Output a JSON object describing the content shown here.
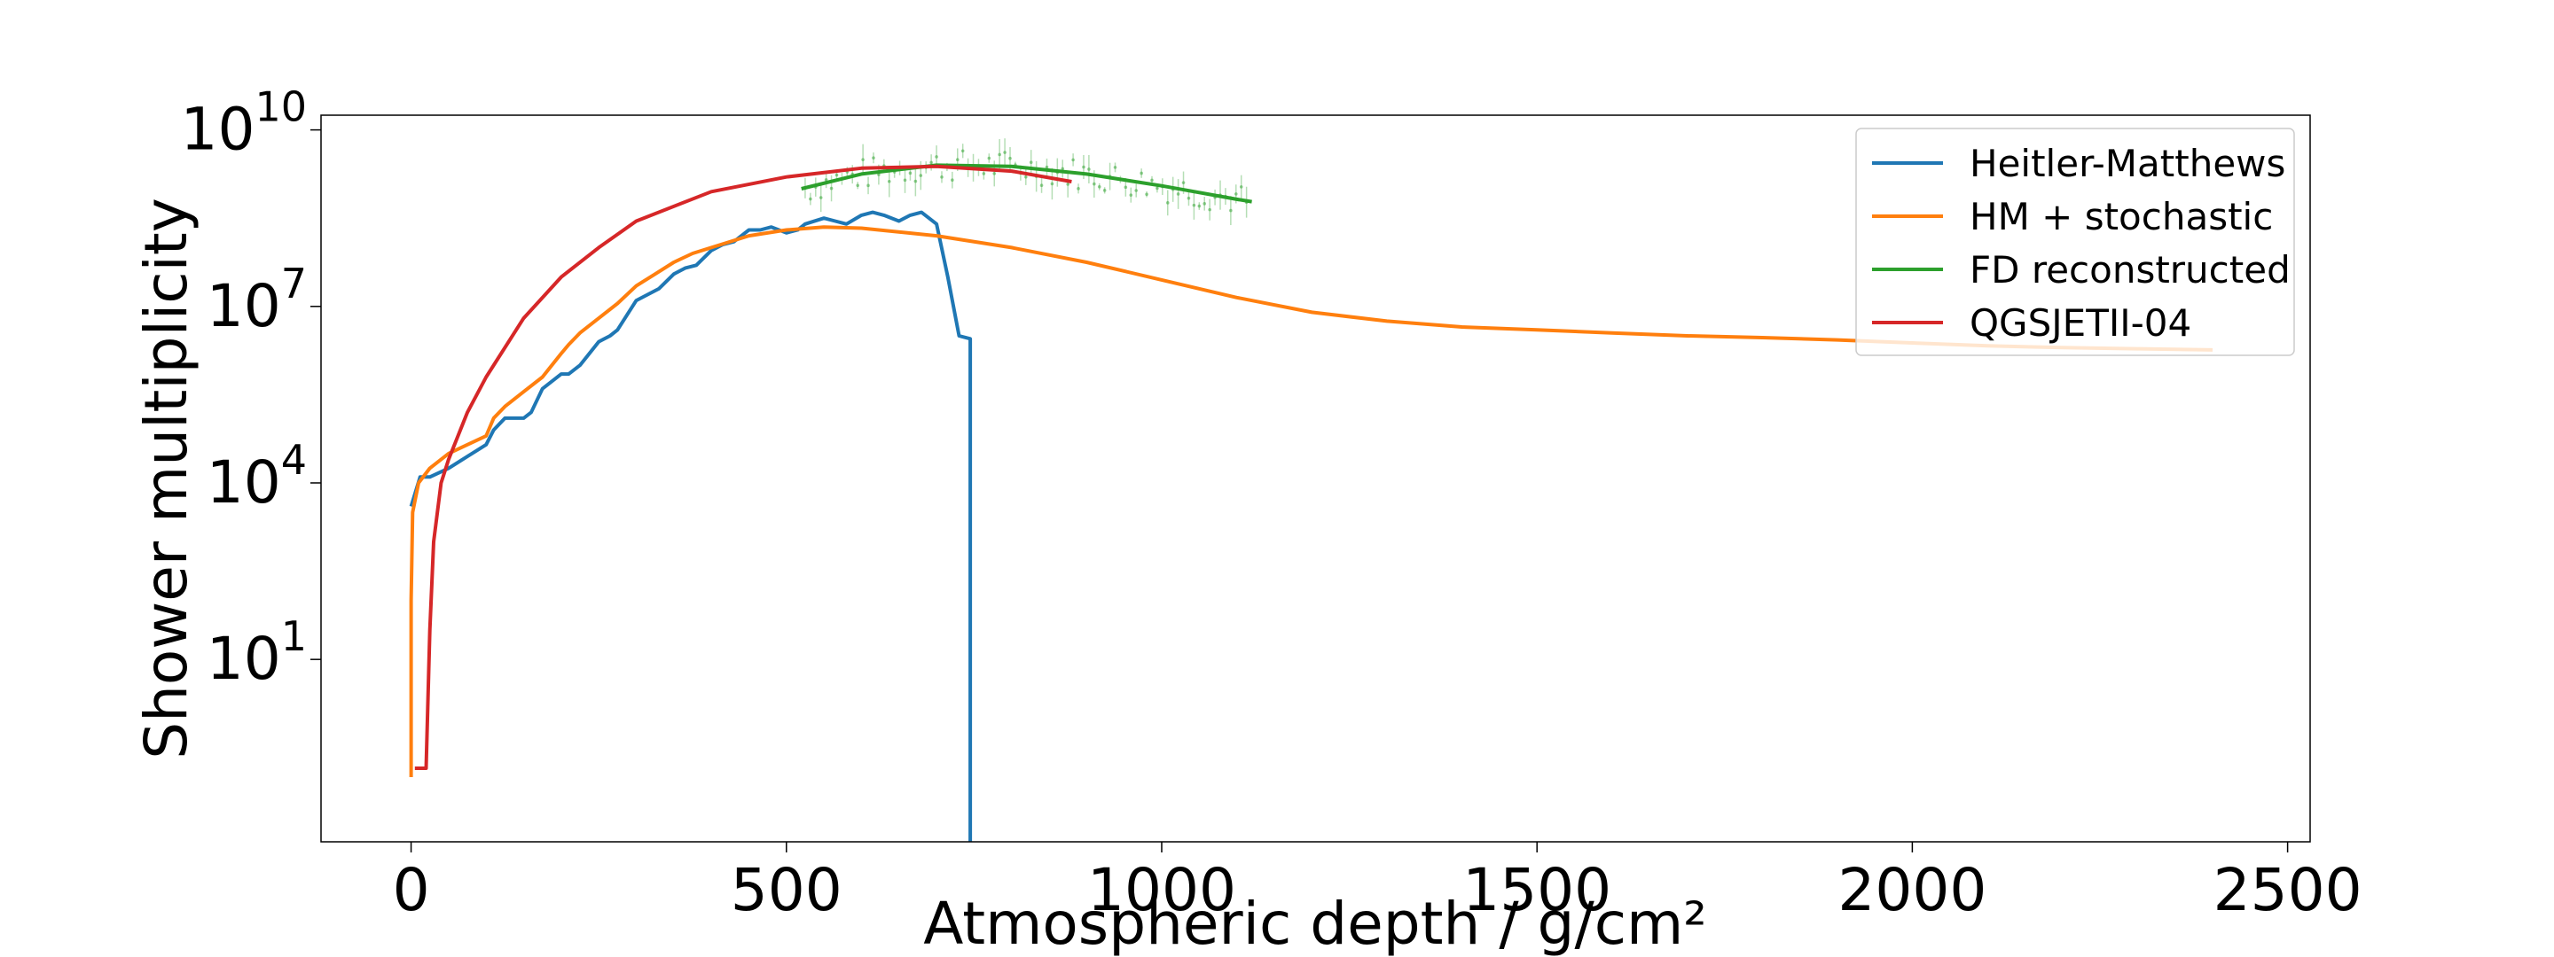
{
  "chart_data": {
    "type": "line",
    "xlabel": "Atmospheric depth / g/cm²",
    "ylabel": "Shower multiplicity",
    "xlim": [
      -120,
      2530
    ],
    "ylim_log10": [
      -2.1,
      10.25
    ],
    "yscale": "log",
    "grid": false,
    "legend_position": "top-right",
    "x_ticks": [
      {
        "value": 0,
        "label": "0"
      },
      {
        "value": 500,
        "label": "500"
      },
      {
        "value": 1000,
        "label": "1000"
      },
      {
        "value": 1500,
        "label": "1500"
      },
      {
        "value": 2000,
        "label": "2000"
      },
      {
        "value": 2500,
        "label": "2500"
      }
    ],
    "y_ticks": [
      {
        "log10": 1,
        "base": "10",
        "exp": "1"
      },
      {
        "log10": 4,
        "base": "10",
        "exp": "4"
      },
      {
        "log10": 7,
        "base": "10",
        "exp": "7"
      },
      {
        "log10": 10,
        "base": "10",
        "exp": "10"
      }
    ],
    "series": [
      {
        "name": "Heitler-Matthews",
        "color": "#1f77b4",
        "x": [
          0,
          12,
          25,
          50,
          75,
          100,
          110,
          125,
          150,
          160,
          175,
          200,
          210,
          225,
          250,
          265,
          275,
          300,
          315,
          330,
          350,
          365,
          380,
          400,
          415,
          430,
          450,
          465,
          480,
          500,
          515,
          525,
          550,
          565,
          580,
          600,
          615,
          630,
          650,
          665,
          680,
          700,
          715,
          730,
          745,
          745,
          745
        ],
        "y": [
          3.6,
          4.1,
          4.1,
          4.25,
          4.45,
          4.65,
          4.9,
          5.1,
          5.1,
          5.2,
          5.6,
          5.85,
          5.85,
          6.0,
          6.4,
          6.5,
          6.6,
          7.1,
          7.2,
          7.3,
          7.55,
          7.65,
          7.7,
          7.95,
          8.05,
          8.1,
          8.3,
          8.3,
          8.35,
          8.25,
          8.3,
          8.4,
          8.5,
          8.45,
          8.4,
          8.55,
          8.6,
          8.55,
          8.45,
          8.55,
          8.6,
          8.4,
          7.5,
          6.5,
          6.45,
          3.0,
          -2.1
        ]
      },
      {
        "name": "HM + stochastic",
        "color": "#ff7f0e",
        "x": [
          0,
          0,
          2,
          10,
          25,
          50,
          75,
          100,
          110,
          125,
          150,
          175,
          200,
          210,
          225,
          250,
          275,
          300,
          325,
          350,
          375,
          400,
          450,
          500,
          550,
          600,
          700,
          800,
          900,
          1000,
          1100,
          1200,
          1300,
          1400,
          1500,
          1600,
          1700,
          1800,
          1900,
          2000,
          2100,
          2200,
          2300,
          2400
        ],
        "y": [
          -1.0,
          2.0,
          3.5,
          4.0,
          4.25,
          4.5,
          4.65,
          4.8,
          5.1,
          5.3,
          5.55,
          5.8,
          6.2,
          6.35,
          6.55,
          6.8,
          7.05,
          7.35,
          7.55,
          7.75,
          7.9,
          8.0,
          8.2,
          8.3,
          8.35,
          8.33,
          8.2,
          8.0,
          7.75,
          7.45,
          7.15,
          6.9,
          6.75,
          6.65,
          6.6,
          6.55,
          6.5,
          6.47,
          6.43,
          6.38,
          6.33,
          6.3,
          6.28,
          6.26
        ]
      },
      {
        "name": "FD reconstructed",
        "color": "#2ca02c",
        "x": [
          520,
          600,
          700,
          800,
          900,
          1000,
          1100,
          1120
        ],
        "y": [
          9.0,
          9.25,
          9.4,
          9.38,
          9.25,
          9.05,
          8.82,
          8.78
        ]
      },
      {
        "name": "QGSJETII-04",
        "color": "#d62728",
        "x": [
          5,
          20,
          25,
          30,
          40,
          50,
          75,
          100,
          150,
          200,
          250,
          300,
          400,
          500,
          600,
          700,
          800,
          880
        ],
        "y": [
          -0.85,
          -0.85,
          1.5,
          3.0,
          4.0,
          4.4,
          5.2,
          5.8,
          6.8,
          7.5,
          8.0,
          8.45,
          8.95,
          9.2,
          9.35,
          9.38,
          9.3,
          9.12
        ]
      }
    ]
  }
}
